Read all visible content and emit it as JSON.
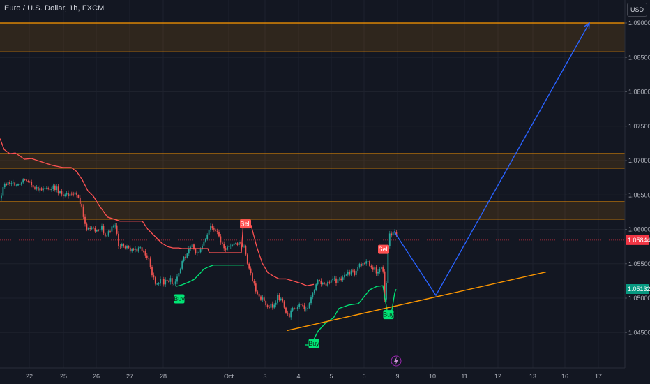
{
  "header": {
    "symbol_title": "Euro / U.S. Dollar, 1h, FXCM",
    "currency_button": "USD"
  },
  "colors": {
    "background": "#131722",
    "grid": "#1e222d",
    "candle_up": "#26a69a",
    "candle_down": "#ef5350",
    "supertrend_up": "#00e676",
    "supertrend_down": "#ff5252",
    "zone_line": "#ff9800",
    "zone_fill": "#2a2416",
    "projection": "#2962ff",
    "trendline": "#ff9800",
    "current_price": "#f23645",
    "lower_price": "#089981"
  },
  "chart_data": {
    "type": "candlestick",
    "symbol": "EURUSD",
    "timeframe": "1h",
    "x_ticks": [
      "22",
      "25",
      "26",
      "27",
      "28",
      "Oct",
      "3",
      "4",
      "5",
      "6",
      "9",
      "10",
      "11",
      "12",
      "13",
      "16",
      "17"
    ],
    "y_ticks": [
      "1.09000",
      "1.08500",
      "1.08000",
      "1.07500",
      "1.07000",
      "1.06500",
      "1.06000",
      "1.05500",
      "1.05000",
      "1.04500"
    ],
    "ylim": [
      1.0425,
      1.0925
    ],
    "grid": true,
    "current_price": {
      "value": 1.05844,
      "label": "1.05844"
    },
    "secondary_price": {
      "value": 1.05132,
      "label": "1.05132"
    },
    "zones": [
      {
        "top": 1.09,
        "bottom": 1.0858
      },
      {
        "top": 1.071,
        "bottom": 1.0689
      },
      {
        "top": 1.064,
        "bottom": 1.0615
      }
    ],
    "price_path": [
      [
        0,
        1.0645
      ],
      [
        6,
        1.0668
      ],
      [
        14,
        1.0663
      ],
      [
        25,
        1.0665
      ],
      [
        35,
        1.0672
      ],
      [
        45,
        1.0668
      ],
      [
        55,
        1.0655
      ],
      [
        65,
        1.0658
      ],
      [
        75,
        1.0662
      ],
      [
        85,
        1.0656
      ],
      [
        95,
        1.065
      ],
      [
        102,
        1.0655
      ],
      [
        110,
        1.0652
      ],
      [
        118,
        1.0634
      ],
      [
        123,
        1.0596
      ],
      [
        130,
        1.0605
      ],
      [
        138,
        1.0598
      ],
      [
        146,
        1.0602
      ],
      [
        152,
        1.0589
      ],
      [
        158,
        1.0599
      ],
      [
        165,
        1.0603
      ],
      [
        170,
        1.058
      ],
      [
        178,
        1.0575
      ],
      [
        186,
        1.0572
      ],
      [
        194,
        1.0568
      ],
      [
        200,
        1.0574
      ],
      [
        206,
        1.057
      ],
      [
        212,
        1.056
      ],
      [
        218,
        1.053
      ],
      [
        224,
        1.052
      ],
      [
        230,
        1.0525
      ],
      [
        238,
        1.0522
      ],
      [
        245,
        1.0525
      ],
      [
        252,
        1.052
      ],
      [
        258,
        1.054
      ],
      [
        264,
        1.0562
      ],
      [
        270,
        1.0566
      ],
      [
        276,
        1.0577
      ],
      [
        282,
        1.0562
      ],
      [
        288,
        1.0571
      ],
      [
        294,
        1.0582
      ],
      [
        300,
        1.06
      ],
      [
        306,
        1.0605
      ],
      [
        312,
        1.0592
      ],
      [
        318,
        1.0582
      ],
      [
        324,
        1.0573
      ],
      [
        330,
        1.0572
      ],
      [
        336,
        1.058
      ],
      [
        344,
        1.0578
      ],
      [
        350,
        1.0574
      ],
      [
        356,
        1.0545
      ],
      [
        362,
        1.0525
      ],
      [
        368,
        1.051
      ],
      [
        374,
        1.05
      ],
      [
        380,
        1.0492
      ],
      [
        386,
        1.0488
      ],
      [
        392,
        1.049
      ],
      [
        398,
        1.0502
      ],
      [
        404,
        1.0497
      ],
      [
        410,
        1.048
      ],
      [
        414,
        1.047
      ],
      [
        420,
        1.0485
      ],
      [
        426,
        1.049
      ],
      [
        432,
        1.0487
      ],
      [
        438,
        1.0488
      ],
      [
        444,
        1.0492
      ],
      [
        450,
        1.051
      ],
      [
        456,
        1.0528
      ],
      [
        462,
        1.0523
      ],
      [
        468,
        1.0519
      ],
      [
        474,
        1.0527
      ],
      [
        480,
        1.0524
      ],
      [
        486,
        1.053
      ],
      [
        492,
        1.0527
      ],
      [
        498,
        1.0535
      ],
      [
        504,
        1.0538
      ],
      [
        510,
        1.0535
      ],
      [
        516,
        1.0549
      ],
      [
        522,
        1.055
      ],
      [
        528,
        1.055
      ],
      [
        534,
        1.0545
      ],
      [
        540,
        1.054
      ],
      [
        546,
        1.0547
      ],
      [
        549,
        1.0541
      ],
      [
        551,
        1.0492
      ],
      [
        553,
        1.05
      ],
      [
        556,
        1.0578
      ],
      [
        560,
        1.0595
      ],
      [
        566,
        1.0592
      ],
      [
        572,
        1.0585
      ]
    ],
    "supertrend_down": [
      [
        0,
        1.0732
      ],
      [
        6,
        1.0716
      ],
      [
        14,
        1.071
      ],
      [
        22,
        1.0711
      ],
      [
        28,
        1.0707
      ],
      [
        35,
        1.0702
      ],
      [
        45,
        1.0703
      ],
      [
        60,
        1.0698
      ],
      [
        75,
        1.0693
      ],
      [
        90,
        1.069
      ],
      [
        102,
        1.069
      ],
      [
        110,
        1.0684
      ],
      [
        118,
        1.0672
      ],
      [
        126,
        1.0656
      ],
      [
        134,
        1.0648
      ],
      [
        142,
        1.0635
      ],
      [
        154,
        1.0618
      ],
      [
        172,
        1.0612
      ],
      [
        190,
        1.0612
      ],
      [
        204,
        1.0612
      ],
      [
        212,
        1.06
      ],
      [
        222,
        1.059
      ],
      [
        232,
        1.058
      ],
      [
        240,
        1.0575
      ],
      [
        248,
        1.0573
      ],
      [
        256,
        1.0573
      ],
      [
        262,
        1.0572
      ],
      [
        278,
        1.0572
      ],
      [
        288,
        1.0572
      ],
      [
        298,
        1.0572
      ],
      [
        300,
        1.0566
      ],
      [
        310,
        1.0566
      ],
      [
        320,
        1.0566
      ],
      [
        330,
        1.0566
      ],
      [
        340,
        1.0566
      ],
      [
        346,
        1.0566
      ],
      [
        349,
        1.061
      ],
      [
        360,
        1.0606
      ],
      [
        368,
        1.0575
      ],
      [
        376,
        1.0551
      ],
      [
        384,
        1.0537
      ],
      [
        392,
        1.0532
      ],
      [
        400,
        1.0528
      ],
      [
        410,
        1.0528
      ],
      [
        420,
        1.0525
      ],
      [
        430,
        1.0522
      ],
      [
        440,
        1.0518
      ],
      [
        450,
        1.052
      ]
    ],
    "supertrend_up": [
      [
        252,
        1.0517
      ],
      [
        260,
        1.0519
      ],
      [
        270,
        1.0523
      ],
      [
        278,
        1.0527
      ],
      [
        286,
        1.0535
      ],
      [
        292,
        1.0542
      ],
      [
        298,
        1.0545
      ],
      [
        306,
        1.0548
      ],
      [
        320,
        1.0548
      ],
      [
        336,
        1.0548
      ],
      [
        350,
        1.0548
      ],
      [
        438,
        1.0432
      ],
      [
        446,
        1.0432
      ],
      [
        456,
        1.0452
      ],
      [
        468,
        1.0465
      ],
      [
        478,
        1.0471
      ],
      [
        486,
        1.0485
      ],
      [
        500,
        1.049
      ],
      [
        514,
        1.0492
      ],
      [
        522,
        1.0502
      ],
      [
        530,
        1.0512
      ],
      [
        540,
        1.0517
      ],
      [
        549,
        1.0518
      ],
      [
        556,
        1.0476
      ],
      [
        562,
        1.0483
      ],
      [
        566,
        1.0508
      ],
      [
        568,
        1.0513
      ]
    ],
    "signals": [
      {
        "label": "Sell",
        "type": "sell",
        "x": 352,
        "y": 1.0608
      },
      {
        "label": "Buy",
        "type": "buy",
        "x": 257,
        "y": 1.0499
      },
      {
        "label": "Buy",
        "type": "buy",
        "x": 450,
        "y": 1.0434
      },
      {
        "label": "Sell",
        "type": "sell",
        "x": 550,
        "y": 1.0571
      },
      {
        "label": "Buy",
        "type": "buy",
        "x": 557,
        "y": 1.0476
      }
    ],
    "trendline": {
      "from": [
        412,
        1.0453
      ],
      "to": [
        783,
        1.0538
      ]
    },
    "projection": [
      [
        565,
        1.0597
      ],
      [
        625,
        1.0504
      ],
      [
        845,
        1.09
      ]
    ]
  }
}
